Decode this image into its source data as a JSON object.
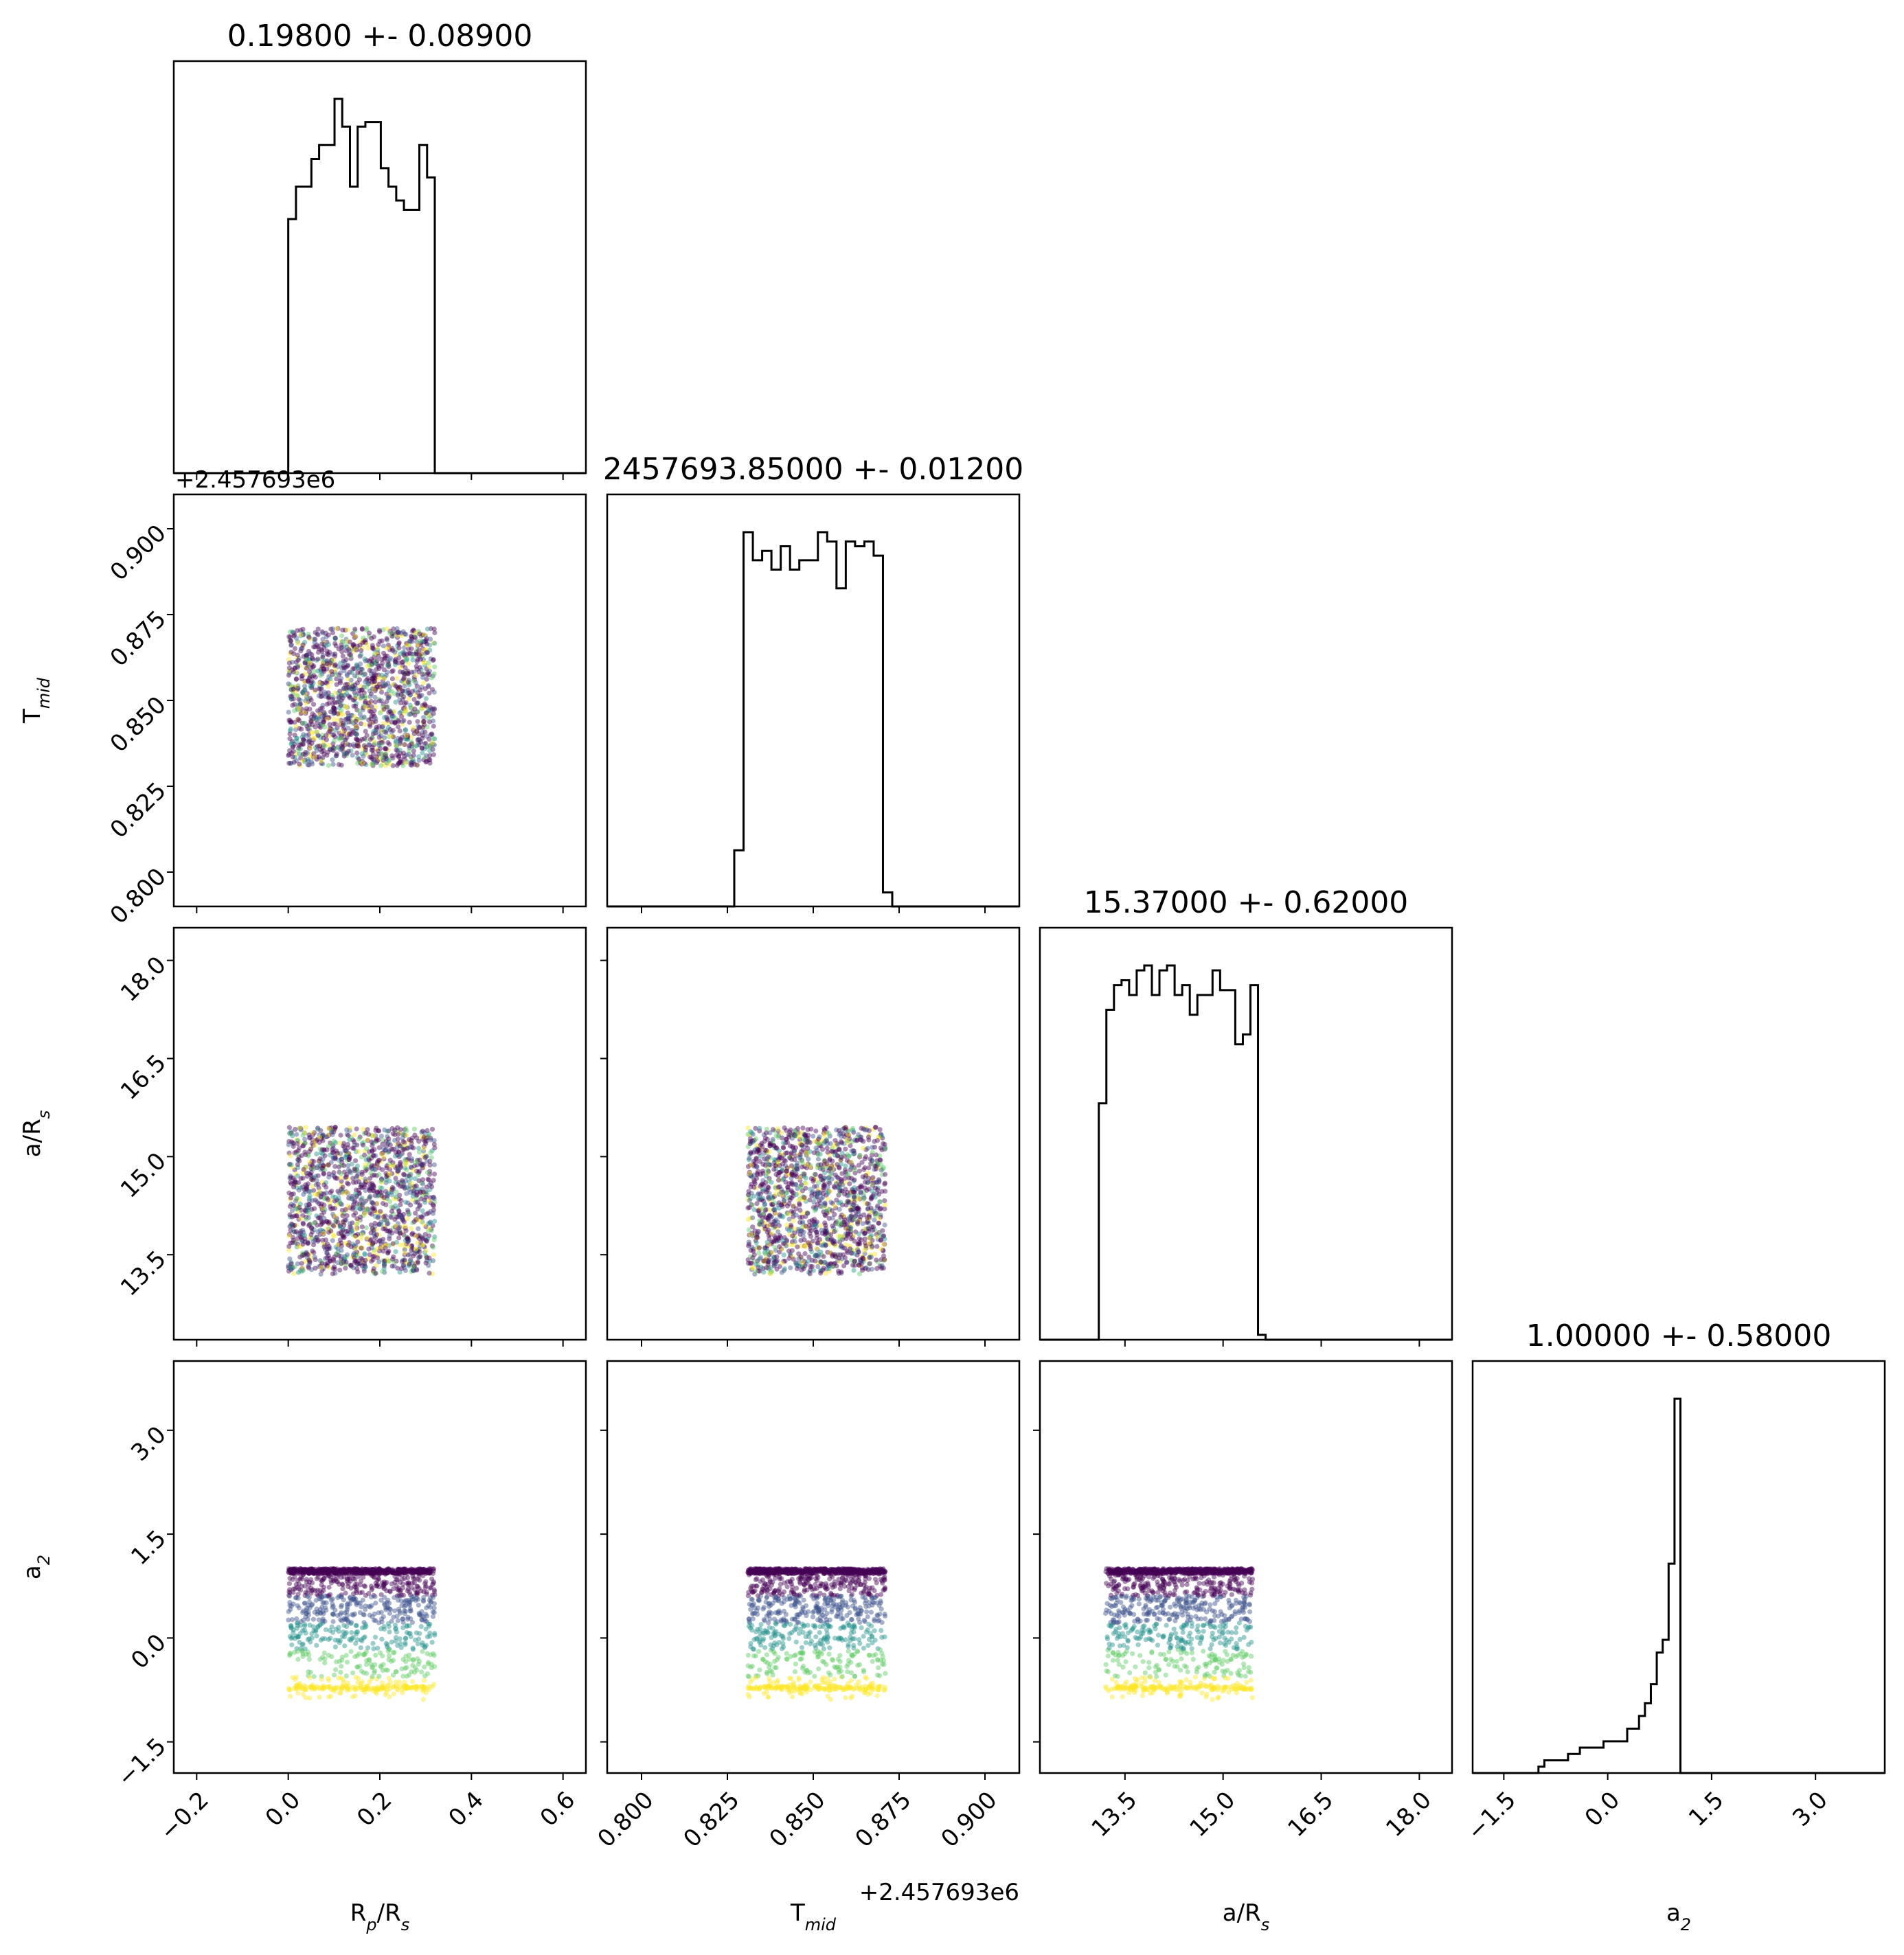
{
  "chart_data": {
    "type": "scatter",
    "subtype": "corner-plot",
    "parameters": [
      {
        "key": "rp",
        "label": "R_p/R_s",
        "label_main": "R",
        "label_sub1": "p",
        "label_rest": "/R",
        "label_sub2": "s",
        "title": "0.19800 +- 0.08900",
        "range": [
          -0.25,
          0.65
        ],
        "ticks": [
          -0.2,
          0.0,
          0.2,
          0.4,
          0.6
        ],
        "tick_labels": [
          "−0.2",
          "0.0",
          "0.2",
          "0.4",
          "0.6"
        ],
        "offset": "",
        "hist": {
          "lo": 0.0,
          "hi": 0.32,
          "counts": [
            55,
            62,
            62,
            68,
            71,
            71,
            81,
            75,
            62,
            75,
            76,
            76,
            66,
            62,
            59,
            57,
            57,
            71,
            64
          ]
        }
      },
      {
        "key": "tmid",
        "label": "T_mid",
        "label_main": "T",
        "label_sub1": "mid",
        "label_rest": "",
        "label_sub2": "",
        "title": "2457693.85000 +- 0.01200",
        "range": [
          0.79,
          0.91
        ],
        "ticks": [
          0.8,
          0.825,
          0.85,
          0.875,
          0.9
        ],
        "tick_labels": [
          "0.800",
          "0.825",
          "0.850",
          "0.875",
          "0.900"
        ],
        "offset": "+2.457693e6",
        "hist": {
          "lo": 0.827,
          "hi": 0.873,
          "counts": [
            12,
            80,
            74,
            76,
            72,
            77,
            72,
            74,
            74,
            80,
            78,
            68,
            78,
            77,
            78,
            75,
            3
          ]
        }
      },
      {
        "key": "aRs",
        "label": "a/R_s",
        "label_main": "a/R",
        "label_sub1": "s",
        "label_rest": "",
        "label_sub2": "",
        "title": "15.37000 +- 0.62000",
        "range": [
          12.2,
          18.5
        ],
        "ticks": [
          13.5,
          15.0,
          16.5,
          18.0
        ],
        "tick_labels": [
          "13.5",
          "15.0",
          "16.5",
          "18.0"
        ],
        "offset": "",
        "hist": {
          "lo": 13.1,
          "hi": 15.65,
          "counts": [
            48,
            67,
            72,
            73,
            70,
            75,
            76,
            70,
            75,
            76,
            70,
            72,
            66,
            70,
            70,
            75,
            71,
            71,
            60,
            62,
            72,
            1
          ]
        }
      },
      {
        "key": "a2",
        "label": "a_2",
        "label_main": "a",
        "label_sub1": "2",
        "label_rest": "",
        "label_sub2": "",
        "title": "1.00000 +- 0.58000",
        "range": [
          -1.95,
          4.0
        ],
        "ticks": [
          -1.5,
          0.0,
          1.5,
          3.0
        ],
        "tick_labels": [
          "−1.5",
          "0.0",
          "1.5",
          "3.0"
        ],
        "offset": "",
        "hist": {
          "lo": -1.0,
          "hi": 1.05,
          "counts": [
            1,
            2,
            2,
            2,
            2,
            3,
            3,
            4,
            4,
            4,
            4,
            5,
            5,
            5,
            5,
            7,
            7,
            9,
            11,
            14,
            19,
            21,
            33,
            59
          ]
        }
      }
    ],
    "scatter_boxes": {
      "rp": [
        0.0,
        0.32
      ],
      "tmid": [
        0.831,
        0.871
      ],
      "aRs": [
        13.2,
        15.45
      ],
      "a2_band": [
        -0.95,
        1.0
      ],
      "a2_floor": -0.72
    },
    "colormap": [
      "#440154",
      "#3b528b",
      "#21918c",
      "#5ec962",
      "#fde725"
    ],
    "grid": false,
    "legend": "none"
  }
}
